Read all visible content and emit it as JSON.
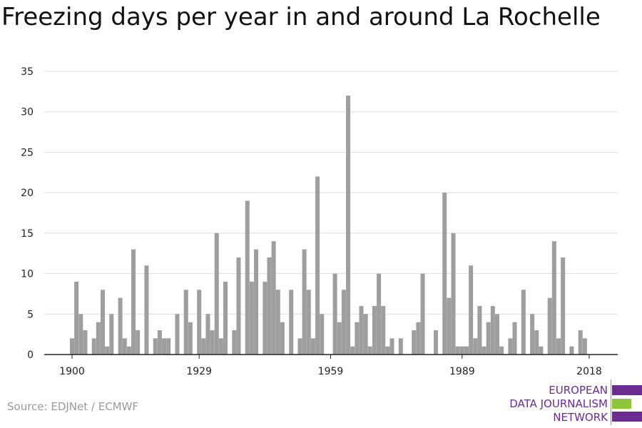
{
  "title": "Freezing days per year in and around La Rochelle",
  "source": "Source: EDJNet / ECMWF",
  "logo": {
    "lines": [
      "EUROPEAN",
      "DATA JOURNALISM",
      "NETWORK"
    ],
    "colors": {
      "purple": "#6b2c91",
      "green": "#8cc63f"
    }
  },
  "chart_data": {
    "type": "bar",
    "title": "Freezing days per year in and around La Rochelle",
    "xlabel": "",
    "ylabel": "",
    "ylim": [
      0,
      35
    ],
    "yticks": [
      0,
      5,
      10,
      15,
      20,
      25,
      30,
      35
    ],
    "xticks": [
      1900,
      1929,
      1959,
      1989,
      2018
    ],
    "x_range": [
      1900,
      2018
    ],
    "bar_color": "#9e9e9e",
    "grid": true,
    "x": [
      1900,
      1901,
      1902,
      1903,
      1904,
      1905,
      1906,
      1907,
      1908,
      1909,
      1910,
      1911,
      1912,
      1913,
      1914,
      1915,
      1916,
      1917,
      1918,
      1919,
      1920,
      1921,
      1922,
      1923,
      1924,
      1925,
      1926,
      1927,
      1928,
      1929,
      1930,
      1931,
      1932,
      1933,
      1934,
      1935,
      1936,
      1937,
      1938,
      1939,
      1940,
      1941,
      1942,
      1943,
      1944,
      1945,
      1946,
      1947,
      1948,
      1949,
      1950,
      1951,
      1952,
      1953,
      1954,
      1955,
      1956,
      1957,
      1958,
      1959,
      1960,
      1961,
      1962,
      1963,
      1964,
      1965,
      1966,
      1967,
      1968,
      1969,
      1970,
      1971,
      1972,
      1973,
      1974,
      1975,
      1976,
      1977,
      1978,
      1979,
      1980,
      1981,
      1982,
      1983,
      1984,
      1985,
      1986,
      1987,
      1988,
      1989,
      1990,
      1991,
      1992,
      1993,
      1994,
      1995,
      1996,
      1997,
      1998,
      1999,
      2000,
      2001,
      2002,
      2003,
      2004,
      2005,
      2006,
      2007,
      2008,
      2009,
      2010,
      2011,
      2012,
      2013,
      2014,
      2015,
      2016,
      2017,
      2018
    ],
    "values": [
      2,
      9,
      5,
      3,
      0,
      2,
      4,
      8,
      1,
      5,
      0,
      7,
      2,
      1,
      13,
      3,
      0,
      11,
      0,
      2,
      3,
      2,
      2,
      0,
      5,
      0,
      8,
      4,
      0,
      8,
      2,
      5,
      3,
      15,
      2,
      9,
      0,
      3,
      12,
      0,
      19,
      9,
      13,
      0,
      9,
      12,
      14,
      8,
      4,
      0,
      8,
      0,
      2,
      13,
      8,
      2,
      22,
      5,
      0,
      0,
      10,
      4,
      8,
      32,
      1,
      4,
      6,
      5,
      1,
      6,
      10,
      6,
      1,
      2,
      0,
      2,
      0,
      0,
      3,
      4,
      10,
      0,
      0,
      3,
      0,
      20,
      7,
      15,
      1,
      1,
      1,
      11,
      2,
      6,
      1,
      4,
      6,
      5,
      1,
      0,
      2,
      4,
      0,
      8,
      0,
      5,
      3,
      1,
      0,
      7,
      14,
      2,
      12,
      0,
      1,
      0,
      3,
      2,
      0
    ]
  }
}
